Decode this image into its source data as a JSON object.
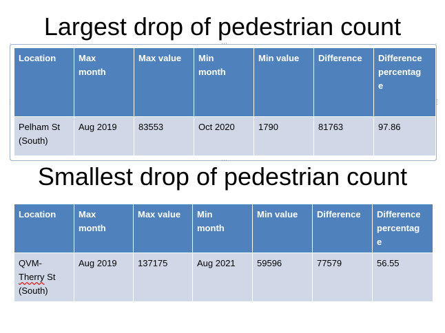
{
  "title1": "Largest drop of pedestrian count",
  "title2": "Smallest drop of pedestrian count",
  "headers": [
    "Location",
    "Max month",
    "Max value",
    "Min month",
    "Min value",
    "Difference",
    "Difference percentage"
  ],
  "header_lines": {
    "max_month": [
      "Max",
      "month"
    ],
    "min_month": [
      "Min",
      "month"
    ],
    "diff_pct": [
      "Difference",
      "percentag",
      "e"
    ]
  },
  "largest": {
    "location_lines": [
      "Pelham St",
      "(South)"
    ],
    "max_month": "Aug 2019",
    "max_value": "83553",
    "min_month": "Oct 2020",
    "min_value": "1790",
    "difference": "81763",
    "difference_percentage": "97.86"
  },
  "smallest": {
    "location_lines": [
      "QVM-",
      "Therry",
      " St",
      "(South)"
    ],
    "max_month": "Aug 2019",
    "max_value": "137175",
    "min_month": "Aug 2021",
    "min_value": "59596",
    "difference": "77579",
    "difference_percentage": "56.55"
  },
  "colors": {
    "header": "#4f81bd",
    "row": "#d0d8e8"
  }
}
